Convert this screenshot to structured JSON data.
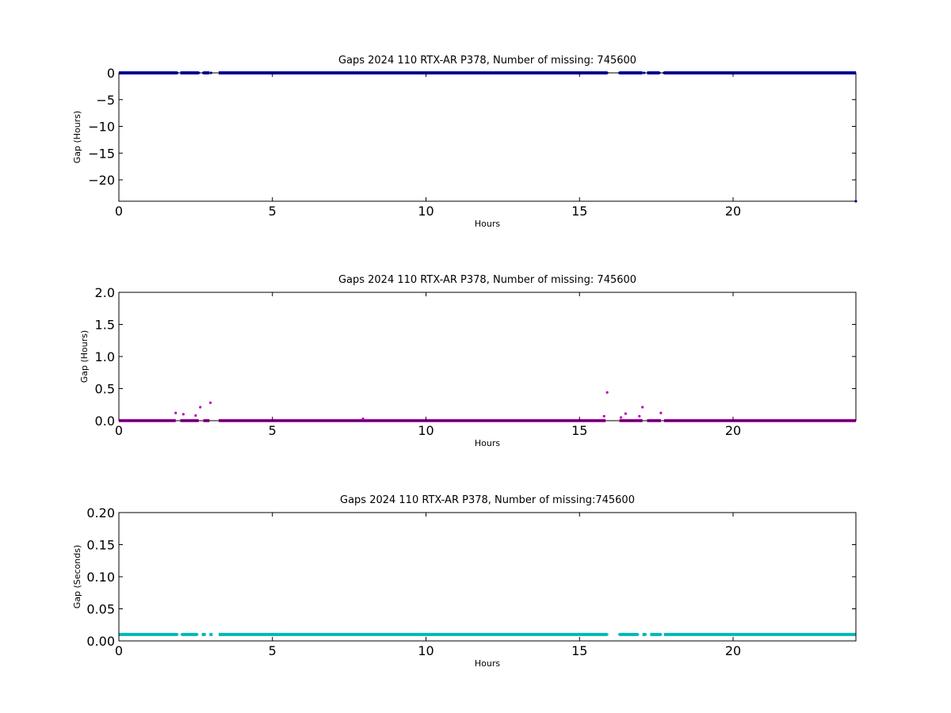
{
  "chart_data": [
    {
      "type": "scatter",
      "title": "Gaps 2024 110 RTX-AR  P378, Number of missing: 745600",
      "xlabel": "Hours",
      "ylabel": "Gap (Hours)",
      "xlim": [
        0,
        24
      ],
      "ylim": [
        -24,
        0
      ],
      "xticks": [
        0,
        5,
        10,
        15,
        20
      ],
      "yticks": [
        0,
        -5,
        -10,
        -15,
        -20
      ],
      "ytick_labels": [
        "0",
        "−5",
        "−10",
        "−15",
        "−20"
      ],
      "grid": false,
      "color": "#0000cc",
      "series": [
        {
          "baseline": 0,
          "segments": [
            [
              0,
              1.9
            ],
            [
              2.0,
              2.6
            ],
            [
              2.75,
              2.95
            ],
            [
              3.25,
              15.9
            ],
            [
              16.3,
              17.05
            ],
            [
              17.2,
              17.6
            ],
            [
              17.75,
              24
            ]
          ],
          "points": [
            [
              1.9,
              0
            ],
            [
              2.1,
              0
            ],
            [
              2.6,
              0
            ],
            [
              2.75,
              0
            ],
            [
              3.0,
              0
            ],
            [
              15.9,
              0
            ],
            [
              16.3,
              0
            ],
            [
              17.1,
              0
            ],
            [
              17.6,
              0
            ],
            [
              17.75,
              0
            ],
            [
              24.0,
              -24.0
            ]
          ]
        }
      ]
    },
    {
      "type": "scatter",
      "title": "Gaps 2024 110 RTX-AR  P378, Number of missing: 745600",
      "xlabel": "Hours",
      "ylabel": "Gap (Hours)",
      "xlim": [
        0,
        24
      ],
      "ylim": [
        0,
        2.0
      ],
      "xticks": [
        0,
        5,
        10,
        15,
        20
      ],
      "yticks": [
        0,
        0.5,
        1.0,
        1.5,
        2.0
      ],
      "ytick_labels": [
        "0.0",
        "0.5",
        "1.0",
        "1.5",
        "2.0"
      ],
      "grid": false,
      "color": "#bb00bb",
      "series": [
        {
          "baseline": 0.0,
          "segments": [
            [
              0,
              1.85
            ],
            [
              2.0,
              2.6
            ],
            [
              2.75,
              2.95
            ],
            [
              3.25,
              15.85
            ],
            [
              16.3,
              17.05
            ],
            [
              17.2,
              17.65
            ],
            [
              17.75,
              24
            ]
          ],
          "points": [
            [
              1.85,
              0.12
            ],
            [
              2.1,
              0.1
            ],
            [
              2.5,
              0.08
            ],
            [
              2.65,
              0.21
            ],
            [
              2.98,
              0.28
            ],
            [
              7.95,
              0.03
            ],
            [
              15.8,
              0.07
            ],
            [
              15.9,
              0.44
            ],
            [
              16.35,
              0.05
            ],
            [
              16.5,
              0.11
            ],
            [
              16.95,
              0.07
            ],
            [
              17.05,
              0.21
            ],
            [
              17.65,
              0.12
            ]
          ]
        }
      ]
    },
    {
      "type": "scatter",
      "title": "Gaps 2024 110 RTX-AR  P378, Number of missing:745600",
      "xlabel": "Hours",
      "ylabel": "Gap (Seconds)",
      "xlim": [
        0,
        24
      ],
      "ylim": [
        0,
        0.2
      ],
      "xticks": [
        0,
        5,
        10,
        15,
        20
      ],
      "yticks": [
        0,
        0.05,
        0.1,
        0.15,
        0.2
      ],
      "ytick_labels": [
        "0.00",
        "0.05",
        "0.10",
        "0.15",
        "0.20"
      ],
      "grid": false,
      "color": "#00b8b8",
      "series": [
        {
          "baseline": 0.01,
          "segments": [
            [
              0,
              1.9
            ],
            [
              2.05,
              2.55
            ],
            [
              2.7,
              2.8
            ],
            [
              2.95,
              3.05
            ],
            [
              3.25,
              15.9
            ],
            [
              16.3,
              16.9
            ],
            [
              17.05,
              17.15
            ],
            [
              17.3,
              17.65
            ],
            [
              17.75,
              24
            ]
          ],
          "points": [
            [
              1.9,
              0.01
            ],
            [
              2.05,
              0.01
            ],
            [
              2.55,
              0.01
            ],
            [
              2.8,
              0.01
            ],
            [
              15.9,
              0.01
            ],
            [
              16.3,
              0.01
            ],
            [
              16.9,
              0.01
            ],
            [
              17.15,
              0.01
            ],
            [
              17.65,
              0.01
            ]
          ]
        }
      ]
    }
  ]
}
